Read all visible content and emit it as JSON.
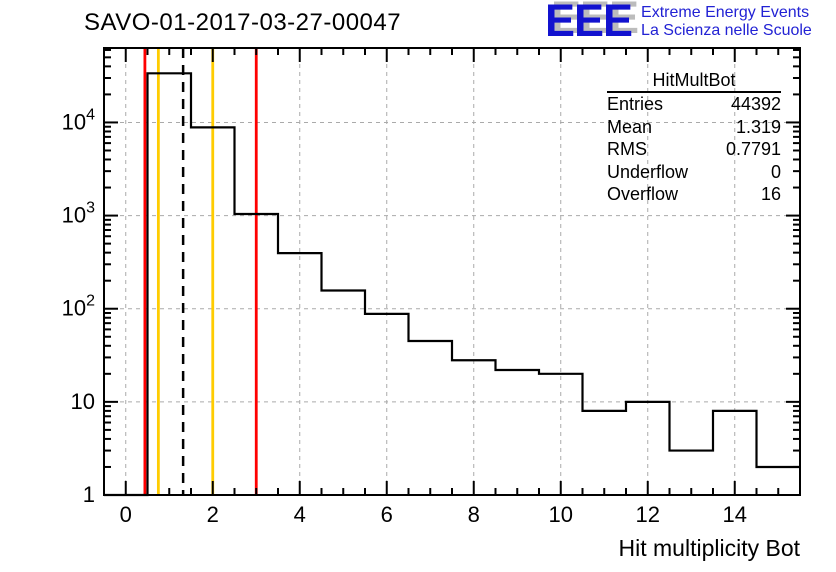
{
  "page": {
    "background": "#ffffff"
  },
  "header": {
    "title": "SAVO-01-2017-03-27-00047",
    "logo": {
      "acronym": "EEE",
      "line1": "Extreme Energy Events",
      "line2": "La Scienza nelle Scuole",
      "mark_color": "#1212cf",
      "text_color": "#2222d4",
      "shadow_color": "#bcbcbc"
    }
  },
  "stats_box": {
    "title": "HitMultBot",
    "rows": [
      {
        "label": "Entries",
        "value": "44392"
      },
      {
        "label": "Mean",
        "value": "1.319"
      },
      {
        "label": "RMS",
        "value": "0.7791"
      },
      {
        "label": "Underflow",
        "value": "0"
      },
      {
        "label": "Overflow",
        "value": "16"
      }
    ]
  },
  "chart_data": {
    "type": "bar",
    "subtype": "step-histogram-outline",
    "title": "SAVO-01-2017-03-27-00047",
    "xlabel": "Hit multiplicity Bot",
    "ylabel": "",
    "ylog": true,
    "ylim": [
      1,
      63000
    ],
    "x_bins": {
      "min": -0.5,
      "max": 15.5,
      "count": 16
    },
    "x": [
      0,
      1,
      2,
      3,
      4,
      5,
      6,
      7,
      8,
      9,
      10,
      11,
      12,
      13,
      14,
      15
    ],
    "values": [
      0,
      33700,
      8850,
      1040,
      395,
      157,
      88,
      45,
      28,
      22,
      20,
      8,
      10,
      3,
      8,
      2
    ],
    "line_color": "#000000",
    "grid": {
      "show": true,
      "color": "#aaaaaa",
      "style": "dashed"
    },
    "x_minor_step": 0.5,
    "x_ticks": [
      {
        "value": 0,
        "label": "0"
      },
      {
        "value": 2,
        "label": "2"
      },
      {
        "value": 4,
        "label": "4"
      },
      {
        "value": 6,
        "label": "6"
      },
      {
        "value": 8,
        "label": "8"
      },
      {
        "value": 10,
        "label": "10"
      },
      {
        "value": 12,
        "label": "12"
      },
      {
        "value": 14,
        "label": "14"
      }
    ],
    "y_ticks": [
      {
        "value": 1,
        "base": "1",
        "exp": ""
      },
      {
        "value": 10,
        "base": "10",
        "exp": ""
      },
      {
        "value": 100,
        "base": "10",
        "exp": "2"
      },
      {
        "value": 1000,
        "base": "10",
        "exp": "3"
      },
      {
        "value": 10000,
        "base": "10",
        "exp": "4"
      }
    ],
    "marker_lines": [
      {
        "value": 0.5,
        "color": "#ff0000",
        "style": "solid",
        "name": "red-cut-line-low"
      },
      {
        "value": 0.75,
        "color": "#ffcc00",
        "style": "solid",
        "name": "yellow-cut-line-low"
      },
      {
        "value": 1.319,
        "color": "#000000",
        "style": "dashed",
        "name": "mean-line"
      },
      {
        "value": 2,
        "color": "#ffcc00",
        "style": "solid",
        "name": "yellow-cut-line-high"
      },
      {
        "value": 3,
        "color": "#ff0000",
        "style": "solid",
        "name": "red-cut-line-high"
      }
    ],
    "legend_position": "none"
  }
}
